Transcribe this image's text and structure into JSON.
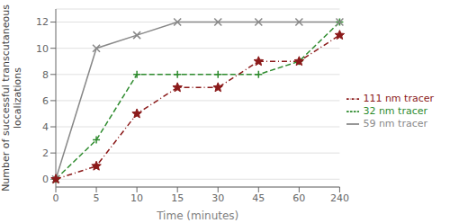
{
  "chart_data": {
    "type": "line",
    "xlabel": "Time (minutes)",
    "ylabel": "Number of successful transcutaneous\nlocalizations",
    "categories": [
      "0",
      "5",
      "10",
      "15",
      "30",
      "45",
      "60",
      "240"
    ],
    "series": [
      {
        "name": "32 nm tracer",
        "color": "#2e8b2e",
        "marker": "plus",
        "line_style": "dashed",
        "values": [
          0,
          3,
          8,
          8,
          8,
          8,
          9,
          12
        ]
      },
      {
        "name": "59 nm tracer",
        "color": "#888888",
        "marker": "x",
        "line_style": "solid",
        "values": [
          0,
          10,
          11,
          12,
          12,
          12,
          12,
          12
        ]
      },
      {
        "name": "111 nm tracer",
        "color": "#8B1a1a",
        "marker": "star",
        "line_style": "dashdot",
        "values": [
          0,
          1,
          5,
          7,
          7,
          9,
          9,
          11
        ]
      }
    ],
    "ylim": [
      -0.6,
      13.0
    ],
    "yticks": [
      0,
      2,
      4,
      6,
      8,
      10,
      12
    ],
    "grid": true,
    "legend": "right"
  }
}
